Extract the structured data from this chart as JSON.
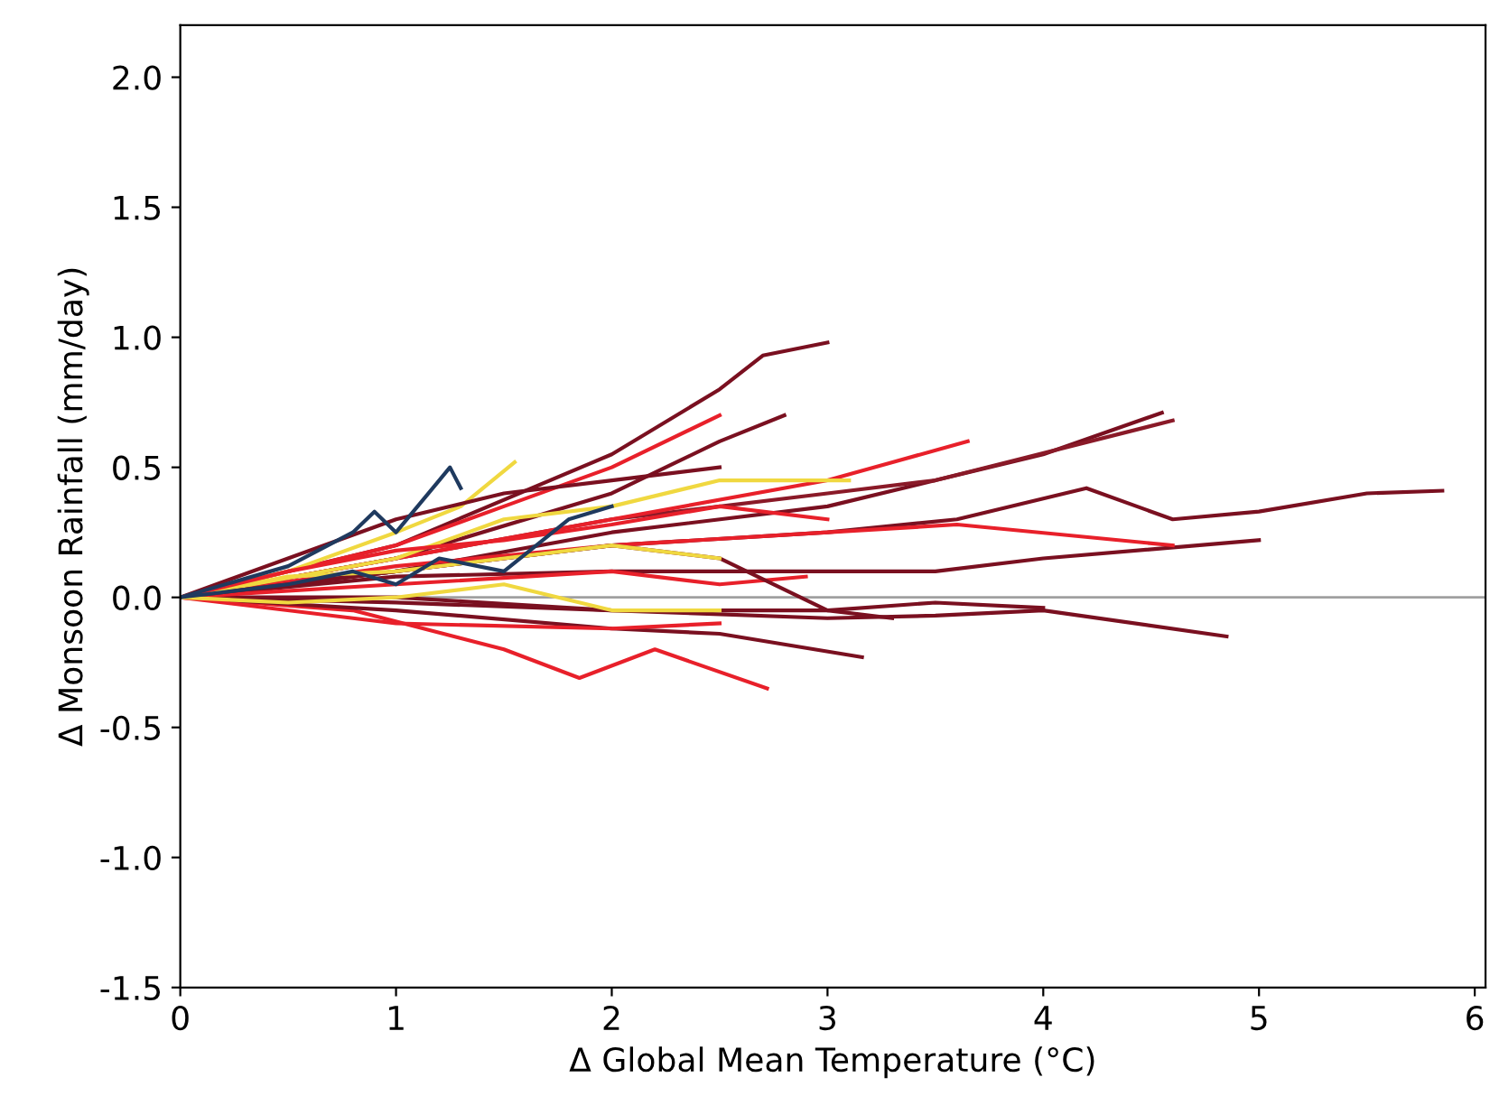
{
  "chart_data": {
    "type": "line",
    "xlabel": "Δ Global Mean Temperature (°C)",
    "ylabel": "Δ Monsoon Rainfall (mm/day)",
    "xlim": [
      0,
      6.05
    ],
    "ylim": [
      -1.5,
      2.2
    ],
    "xticks": [
      0,
      1,
      2,
      3,
      4,
      5,
      6
    ],
    "yticks": [
      -1.5,
      {
        "value": -1,
        "label": "-1.0"
      },
      -0.5,
      {
        "value": 0,
        "label": "0.0"
      },
      0.5,
      {
        "value": 1,
        "label": "1.0"
      },
      1.5,
      {
        "value": 2,
        "label": "2.0"
      }
    ],
    "grid": false,
    "marker": "none",
    "line_style": "solid",
    "ref_lines": [
      {
        "axis": "y",
        "value": 0,
        "label": null,
        "color": "#a0a0a0"
      }
    ],
    "series": [
      {
        "color": "#7a1020",
        "x": [
          0,
          1,
          2,
          2.5,
          2.7,
          3.0
        ],
        "values": [
          0,
          0.2,
          0.55,
          0.8,
          0.93,
          0.98
        ]
      },
      {
        "color": "#7a1020",
        "x": [
          0,
          1,
          2,
          3,
          3.6,
          4.2,
          4.6,
          5.0,
          5.5,
          5.85
        ],
        "values": [
          0,
          0.1,
          0.2,
          0.25,
          0.3,
          0.42,
          0.3,
          0.33,
          0.4,
          0.41
        ]
      },
      {
        "color": "#7a1020",
        "x": [
          0,
          1,
          2,
          3,
          3.5,
          4.0,
          4.55
        ],
        "values": [
          0,
          0.1,
          0.25,
          0.35,
          0.45,
          0.55,
          0.71
        ]
      },
      {
        "color": "#8a1a28",
        "x": [
          0,
          1,
          2,
          3,
          3.5,
          4.6
        ],
        "values": [
          0,
          0.15,
          0.3,
          0.4,
          0.45,
          0.68
        ]
      },
      {
        "color": "#7a1020",
        "x": [
          0,
          1,
          2,
          3,
          3.5,
          4.0,
          4.85
        ],
        "values": [
          0,
          -0.02,
          -0.05,
          -0.08,
          -0.07,
          -0.05,
          -0.15
        ]
      },
      {
        "color": "#7a1020",
        "x": [
          0,
          1,
          2,
          3,
          3.5,
          4.0,
          5.0
        ],
        "values": [
          0,
          0.08,
          0.1,
          0.1,
          0.1,
          0.15,
          0.22
        ]
      },
      {
        "color": "#e8202a",
        "x": [
          0,
          1,
          2,
          3,
          3.6,
          4.6
        ],
        "values": [
          0,
          0.12,
          0.2,
          0.25,
          0.28,
          0.2
        ]
      },
      {
        "color": "#e8202a",
        "x": [
          0,
          0.8,
          1.5,
          1.85,
          2.2,
          2.72
        ],
        "values": [
          0,
          -0.05,
          -0.2,
          -0.31,
          -0.2,
          -0.35
        ]
      },
      {
        "color": "#e8202a",
        "x": [
          0,
          1,
          1.5,
          2,
          2.5
        ],
        "values": [
          0,
          0.2,
          0.35,
          0.5,
          0.7
        ]
      },
      {
        "color": "#7a1020",
        "x": [
          0,
          1,
          2,
          2.5,
          2.8
        ],
        "values": [
          0,
          0.15,
          0.4,
          0.6,
          0.7
        ]
      },
      {
        "color": "#7a1020",
        "x": [
          0,
          1,
          2,
          3,
          3.5,
          4.0
        ],
        "values": [
          0,
          0,
          -0.05,
          -0.05,
          -0.02,
          -0.04
        ]
      },
      {
        "color": "#7a1020",
        "x": [
          0,
          1,
          2,
          2.5,
          3.16
        ],
        "values": [
          0,
          -0.05,
          -0.12,
          -0.14,
          -0.23
        ]
      },
      {
        "color": "#e8202a",
        "x": [
          0,
          1,
          2,
          3,
          3.65
        ],
        "values": [
          0,
          0.15,
          0.3,
          0.45,
          0.6
        ]
      },
      {
        "color": "#f0d840",
        "x": [
          0,
          1,
          1.5,
          2,
          2.5,
          3.1
        ],
        "values": [
          0,
          0.15,
          0.3,
          0.35,
          0.45,
          0.45
        ]
      },
      {
        "color": "#f0d840",
        "x": [
          0,
          0.5,
          1,
          1.3,
          1.55
        ],
        "values": [
          0,
          0.1,
          0.25,
          0.35,
          0.52
        ]
      },
      {
        "color": "#e8202a",
        "x": [
          0,
          1,
          2,
          2.5,
          2.9
        ],
        "values": [
          0,
          0.05,
          0.1,
          0.05,
          0.08
        ]
      },
      {
        "color": "#7a1020",
        "x": [
          0,
          1,
          2,
          2.5,
          3.0,
          3.3
        ],
        "values": [
          0,
          0.1,
          0.2,
          0.15,
          -0.05,
          -0.08
        ]
      },
      {
        "color": "#e8202a",
        "x": [
          0,
          1,
          2,
          2.5
        ],
        "values": [
          0,
          -0.1,
          -0.12,
          -0.1
        ]
      },
      {
        "color": "#7a1020",
        "x": [
          0,
          1,
          1.5,
          2,
          2.5
        ],
        "values": [
          0,
          0.3,
          0.4,
          0.45,
          0.5
        ]
      },
      {
        "color": "#f0d840",
        "x": [
          0,
          0.5,
          1,
          1.5,
          2,
          2.5
        ],
        "values": [
          0,
          0.08,
          0.1,
          0.15,
          0.2,
          0.15
        ]
      },
      {
        "color": "#e8202a",
        "x": [
          0,
          0.5,
          1,
          1.5,
          2,
          2.5,
          3
        ],
        "values": [
          0,
          0.1,
          0.18,
          0.22,
          0.28,
          0.35,
          0.3
        ]
      },
      {
        "color": "#f0d840",
        "x": [
          0,
          0.5,
          1,
          1.5,
          2,
          2.5
        ],
        "values": [
          0,
          -0.02,
          0,
          0.05,
          -0.05,
          -0.05
        ]
      },
      {
        "color": "#1f3a5f",
        "x": [
          0,
          0.5,
          0.8,
          0.9,
          1.0,
          1.1,
          1.2,
          1.25,
          1.3
        ],
        "values": [
          0,
          0.12,
          0.25,
          0.33,
          0.25,
          0.35,
          0.45,
          0.5,
          0.42
        ]
      },
      {
        "color": "#1f3a5f",
        "x": [
          0,
          0.5,
          0.8,
          1.0,
          1.2,
          1.5,
          1.8,
          2.0
        ],
        "values": [
          0,
          0.05,
          0.1,
          0.05,
          0.15,
          0.1,
          0.3,
          0.35
        ]
      }
    ]
  }
}
